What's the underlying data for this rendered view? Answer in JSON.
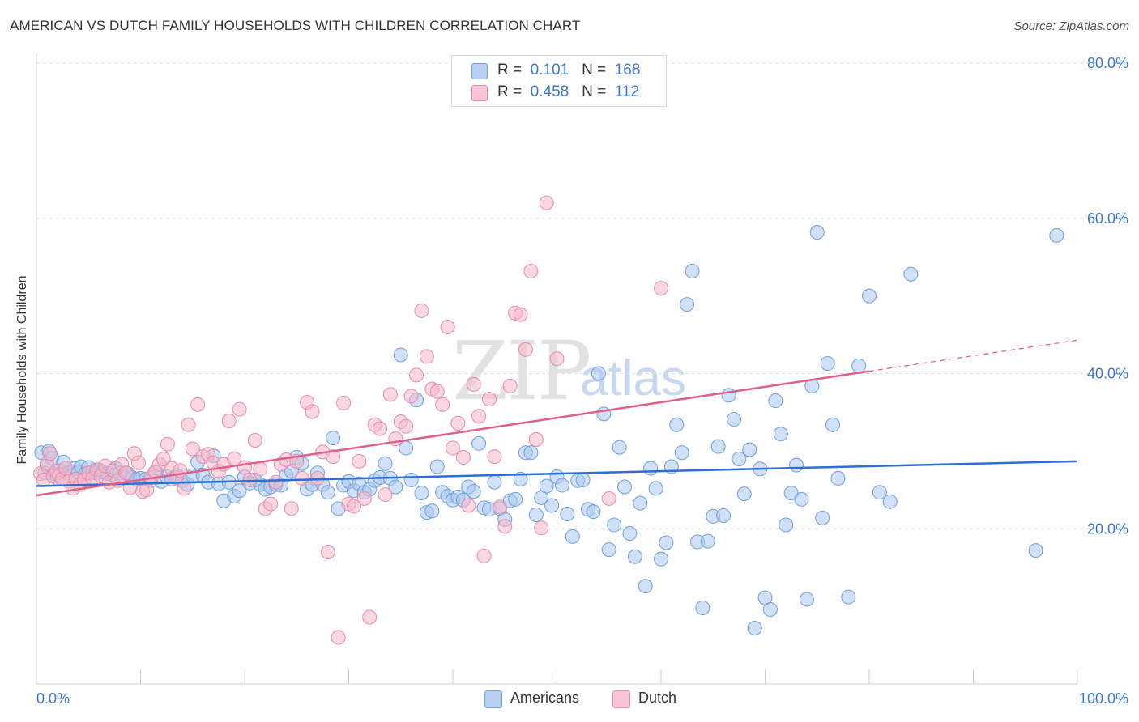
{
  "title": "AMERICAN VS DUTCH FAMILY HOUSEHOLDS WITH CHILDREN CORRELATION CHART",
  "source": "Source: ZipAtlas.com",
  "watermark": {
    "zip": "ZIP",
    "atlas": "atlas"
  },
  "legend": {
    "rows": [
      {
        "r_label": "R =",
        "r_value": "0.101",
        "n_label": "N =",
        "n_value": "168"
      },
      {
        "r_label": "R =",
        "r_value": "0.458",
        "n_label": "N =",
        "n_value": "112"
      }
    ]
  },
  "bottom_legend": {
    "americans": "Americans",
    "dutch": "Dutch"
  },
  "colors": {
    "americans_fill": "#a9c7ee",
    "americans_stroke": "#6f9fdc",
    "americans_line": "#2b6fd0",
    "dutch_fill": "#f5b8cb",
    "dutch_stroke": "#e98aa8",
    "dutch_line": "#e0608a",
    "axis_text": "#3a78d4",
    "grid": "#dedede"
  },
  "chart_data": {
    "type": "scatter",
    "title": "AMERICAN VS DUTCH FAMILY HOUSEHOLDS WITH CHILDREN CORRELATION CHART",
    "xlabel": "",
    "ylabel": "Family Households with Children",
    "xlim": [
      0,
      100
    ],
    "ylim": [
      0,
      80
    ],
    "x_tick_labels": [
      "0.0%",
      "100.0%"
    ],
    "y_ticks": [
      20,
      40,
      60,
      80
    ],
    "y_tick_labels": [
      "20.0%",
      "40.0%",
      "60.0%",
      "80.0%"
    ],
    "grid": true,
    "legend_position": "top-center",
    "series": [
      {
        "name": "Americans",
        "r": 0.101,
        "n": 168,
        "trend": {
          "x": [
            0,
            100
          ],
          "y": [
            25.5,
            28.7
          ]
        },
        "points": [
          [
            0.5,
            29.8
          ],
          [
            0.8,
            27.2
          ],
          [
            1.0,
            28.1
          ],
          [
            1.2,
            30.0
          ],
          [
            1.5,
            29.1
          ],
          [
            1.8,
            27.0
          ],
          [
            2.0,
            26.5
          ],
          [
            2.3,
            27.5
          ],
          [
            2.6,
            28.6
          ],
          [
            3.0,
            27.2
          ],
          [
            3.4,
            26.8
          ],
          [
            3.7,
            27.8
          ],
          [
            4.0,
            27.3
          ],
          [
            4.3,
            28.0
          ],
          [
            4.7,
            27.1
          ],
          [
            5.0,
            27.9
          ],
          [
            5.4,
            27.4
          ],
          [
            5.7,
            27.2
          ],
          [
            6.0,
            27.6
          ],
          [
            6.4,
            27.3
          ],
          [
            6.8,
            27.1
          ],
          [
            7.2,
            27.0
          ],
          [
            7.6,
            27.8
          ],
          [
            8.0,
            27.2
          ],
          [
            8.4,
            26.8
          ],
          [
            8.8,
            27.1
          ],
          [
            9.2,
            26.6
          ],
          [
            9.6,
            26.4
          ],
          [
            10.0,
            26.5
          ],
          [
            10.5,
            26.4
          ],
          [
            11.0,
            26.2
          ],
          [
            11.5,
            27.3
          ],
          [
            12.0,
            26.1
          ],
          [
            12.5,
            26.7
          ],
          [
            13.0,
            26.4
          ],
          [
            13.5,
            26.9
          ],
          [
            14.0,
            26.2
          ],
          [
            14.5,
            25.7
          ],
          [
            15.0,
            26.8
          ],
          [
            15.5,
            28.6
          ],
          [
            16.0,
            26.9
          ],
          [
            16.5,
            26.0
          ],
          [
            17.0,
            29.4
          ],
          [
            17.5,
            25.8
          ],
          [
            18.0,
            23.6
          ],
          [
            18.5,
            26.0
          ],
          [
            19.0,
            24.2
          ],
          [
            19.5,
            24.9
          ],
          [
            20.0,
            26.7
          ],
          [
            20.5,
            25.9
          ],
          [
            21.0,
            26.3
          ],
          [
            21.5,
            25.7
          ],
          [
            22.0,
            25.1
          ],
          [
            22.5,
            25.4
          ],
          [
            23.0,
            25.7
          ],
          [
            23.5,
            25.6
          ],
          [
            24.0,
            26.9
          ],
          [
            24.5,
            27.4
          ],
          [
            25.0,
            29.2
          ],
          [
            25.5,
            28.4
          ],
          [
            26.0,
            25.1
          ],
          [
            26.5,
            25.7
          ],
          [
            27.0,
            27.2
          ],
          [
            27.5,
            25.7
          ],
          [
            28.0,
            24.7
          ],
          [
            28.5,
            31.7
          ],
          [
            29.0,
            22.6
          ],
          [
            29.5,
            25.6
          ],
          [
            30.0,
            26.1
          ],
          [
            30.5,
            24.9
          ],
          [
            31.0,
            25.8
          ],
          [
            31.5,
            24.7
          ],
          [
            32.0,
            25.1
          ],
          [
            32.5,
            26.2
          ],
          [
            33.0,
            26.6
          ],
          [
            33.5,
            28.4
          ],
          [
            34.0,
            26.5
          ],
          [
            34.5,
            25.4
          ],
          [
            35.0,
            42.4
          ],
          [
            35.5,
            30.4
          ],
          [
            36.0,
            26.3
          ],
          [
            36.5,
            36.6
          ],
          [
            37.0,
            24.6
          ],
          [
            37.5,
            22.1
          ],
          [
            38.0,
            22.3
          ],
          [
            38.5,
            28.0
          ],
          [
            39.0,
            24.7
          ],
          [
            39.5,
            24.2
          ],
          [
            40.0,
            23.7
          ],
          [
            40.5,
            24.1
          ],
          [
            41.0,
            23.7
          ],
          [
            41.5,
            25.4
          ],
          [
            42.0,
            24.8
          ],
          [
            42.5,
            31.0
          ],
          [
            43.0,
            22.7
          ],
          [
            43.5,
            22.5
          ],
          [
            44.0,
            26.0
          ],
          [
            44.5,
            22.6
          ],
          [
            45.0,
            21.2
          ],
          [
            45.5,
            23.6
          ],
          [
            46.0,
            23.8
          ],
          [
            46.5,
            26.4
          ],
          [
            47.0,
            29.8
          ],
          [
            47.5,
            29.8
          ],
          [
            48.0,
            21.8
          ],
          [
            48.5,
            24.0
          ],
          [
            49.0,
            25.5
          ],
          [
            49.5,
            23.0
          ],
          [
            50.0,
            26.7
          ],
          [
            50.5,
            25.6
          ],
          [
            51.0,
            21.9
          ],
          [
            51.5,
            19.0
          ],
          [
            52.0,
            26.2
          ],
          [
            52.5,
            26.3
          ],
          [
            53.0,
            22.5
          ],
          [
            53.5,
            22.2
          ],
          [
            54.0,
            40.0
          ],
          [
            54.5,
            34.8
          ],
          [
            55.0,
            17.3
          ],
          [
            55.5,
            20.5
          ],
          [
            56.0,
            30.5
          ],
          [
            56.5,
            25.4
          ],
          [
            57.0,
            19.4
          ],
          [
            57.5,
            16.4
          ],
          [
            58.0,
            23.3
          ],
          [
            58.5,
            12.6
          ],
          [
            59.0,
            27.8
          ],
          [
            59.5,
            25.2
          ],
          [
            60.0,
            16.1
          ],
          [
            60.5,
            18.2
          ],
          [
            61.0,
            28.0
          ],
          [
            61.5,
            33.4
          ],
          [
            62.0,
            29.8
          ],
          [
            62.5,
            48.9
          ],
          [
            63.0,
            53.2
          ],
          [
            63.5,
            18.3
          ],
          [
            64.0,
            9.8
          ],
          [
            64.5,
            18.4
          ],
          [
            65.0,
            21.6
          ],
          [
            65.5,
            30.6
          ],
          [
            66.0,
            21.7
          ],
          [
            66.5,
            37.2
          ],
          [
            67.0,
            34.1
          ],
          [
            67.5,
            29.0
          ],
          [
            68.0,
            24.5
          ],
          [
            68.5,
            30.2
          ],
          [
            69.0,
            7.2
          ],
          [
            69.5,
            27.7
          ],
          [
            70.0,
            11.1
          ],
          [
            70.5,
            9.6
          ],
          [
            71.0,
            36.5
          ],
          [
            71.5,
            32.2
          ],
          [
            72.0,
            20.5
          ],
          [
            72.5,
            24.6
          ],
          [
            73.0,
            28.2
          ],
          [
            73.5,
            23.8
          ],
          [
            74.0,
            10.9
          ],
          [
            74.5,
            38.4
          ],
          [
            75.0,
            58.2
          ],
          [
            75.5,
            21.4
          ],
          [
            76.0,
            41.3
          ],
          [
            76.5,
            33.4
          ],
          [
            77.0,
            26.5
          ],
          [
            78.0,
            11.2
          ],
          [
            79.0,
            41.0
          ],
          [
            80.0,
            50.0
          ],
          [
            81.0,
            24.7
          ],
          [
            82.0,
            23.5
          ],
          [
            84.0,
            52.8
          ],
          [
            96.0,
            17.2
          ],
          [
            98.0,
            57.8
          ]
        ]
      },
      {
        "name": "Dutch",
        "r": 0.458,
        "n": 112,
        "trend": {
          "x": [
            0,
            80
          ],
          "y": [
            24.3,
            40.3
          ]
        },
        "trend_dashed": {
          "x": [
            80,
            100
          ],
          "y": [
            40.3,
            44.3
          ]
        },
        "points": [
          [
            0.4,
            27.1
          ],
          [
            0.7,
            26.3
          ],
          [
            1.0,
            28.4
          ],
          [
            1.3,
            29.7
          ],
          [
            1.6,
            26.8
          ],
          [
            1.9,
            27.4
          ],
          [
            2.2,
            26.9
          ],
          [
            2.5,
            26.4
          ],
          [
            2.8,
            27.8
          ],
          [
            3.1,
            26.1
          ],
          [
            3.5,
            25.2
          ],
          [
            3.8,
            26.4
          ],
          [
            4.2,
            25.7
          ],
          [
            4.6,
            26.3
          ],
          [
            5.0,
            27.2
          ],
          [
            5.4,
            26.5
          ],
          [
            5.8,
            27.6
          ],
          [
            6.2,
            26.8
          ],
          [
            6.6,
            28.1
          ],
          [
            7.0,
            26.0
          ],
          [
            7.4,
            27.5
          ],
          [
            7.8,
            26.2
          ],
          [
            8.2,
            28.3
          ],
          [
            8.6,
            27.2
          ],
          [
            9.0,
            25.3
          ],
          [
            9.4,
            29.7
          ],
          [
            9.8,
            28.5
          ],
          [
            10.2,
            24.8
          ],
          [
            10.6,
            25.0
          ],
          [
            11.0,
            26.6
          ],
          [
            11.4,
            27.3
          ],
          [
            11.8,
            28.3
          ],
          [
            12.2,
            29.0
          ],
          [
            12.6,
            30.9
          ],
          [
            13.0,
            27.8
          ],
          [
            13.4,
            26.6
          ],
          [
            13.8,
            27.5
          ],
          [
            14.2,
            25.2
          ],
          [
            14.6,
            33.4
          ],
          [
            15.0,
            30.3
          ],
          [
            15.5,
            36.0
          ],
          [
            16.0,
            29.3
          ],
          [
            16.5,
            29.6
          ],
          [
            17.0,
            28.5
          ],
          [
            17.5,
            27.4
          ],
          [
            18.0,
            28.3
          ],
          [
            18.5,
            33.9
          ],
          [
            19.0,
            29.0
          ],
          [
            19.5,
            35.4
          ],
          [
            20.0,
            27.9
          ],
          [
            20.5,
            26.3
          ],
          [
            21.0,
            31.4
          ],
          [
            21.5,
            27.7
          ],
          [
            22.0,
            22.6
          ],
          [
            22.5,
            23.2
          ],
          [
            23.0,
            26.0
          ],
          [
            23.5,
            28.3
          ],
          [
            24.0,
            28.9
          ],
          [
            24.5,
            22.6
          ],
          [
            25.0,
            28.7
          ],
          [
            25.5,
            26.5
          ],
          [
            26.0,
            36.3
          ],
          [
            26.5,
            35.1
          ],
          [
            27.0,
            26.5
          ],
          [
            27.5,
            29.9
          ],
          [
            28.0,
            17.0
          ],
          [
            28.5,
            29.3
          ],
          [
            29.0,
            6.0
          ],
          [
            29.5,
            36.2
          ],
          [
            30.0,
            23.2
          ],
          [
            30.5,
            22.9
          ],
          [
            31.0,
            28.7
          ],
          [
            31.5,
            23.9
          ],
          [
            32.0,
            8.6
          ],
          [
            32.5,
            33.4
          ],
          [
            33.0,
            32.9
          ],
          [
            33.5,
            24.4
          ],
          [
            34.0,
            37.3
          ],
          [
            34.5,
            31.6
          ],
          [
            35.0,
            33.8
          ],
          [
            35.5,
            33.2
          ],
          [
            36.0,
            37.1
          ],
          [
            36.5,
            39.8
          ],
          [
            37.0,
            48.1
          ],
          [
            37.5,
            42.2
          ],
          [
            38.0,
            38.0
          ],
          [
            38.5,
            37.7
          ],
          [
            39.0,
            36.0
          ],
          [
            39.5,
            46.0
          ],
          [
            40.0,
            30.4
          ],
          [
            40.5,
            33.6
          ],
          [
            41.0,
            29.2
          ],
          [
            41.5,
            23.0
          ],
          [
            42.0,
            38.6
          ],
          [
            42.5,
            34.5
          ],
          [
            43.0,
            16.5
          ],
          [
            43.5,
            36.7
          ],
          [
            44.0,
            29.3
          ],
          [
            44.5,
            22.8
          ],
          [
            45.0,
            20.3
          ],
          [
            45.5,
            38.4
          ],
          [
            46.0,
            47.8
          ],
          [
            46.5,
            47.6
          ],
          [
            47.0,
            43.1
          ],
          [
            47.5,
            53.2
          ],
          [
            48.0,
            31.5
          ],
          [
            48.5,
            20.1
          ],
          [
            49.0,
            62.0
          ],
          [
            50.0,
            41.9
          ],
          [
            55.0,
            23.9
          ],
          [
            60.0,
            51.0
          ]
        ]
      }
    ]
  }
}
